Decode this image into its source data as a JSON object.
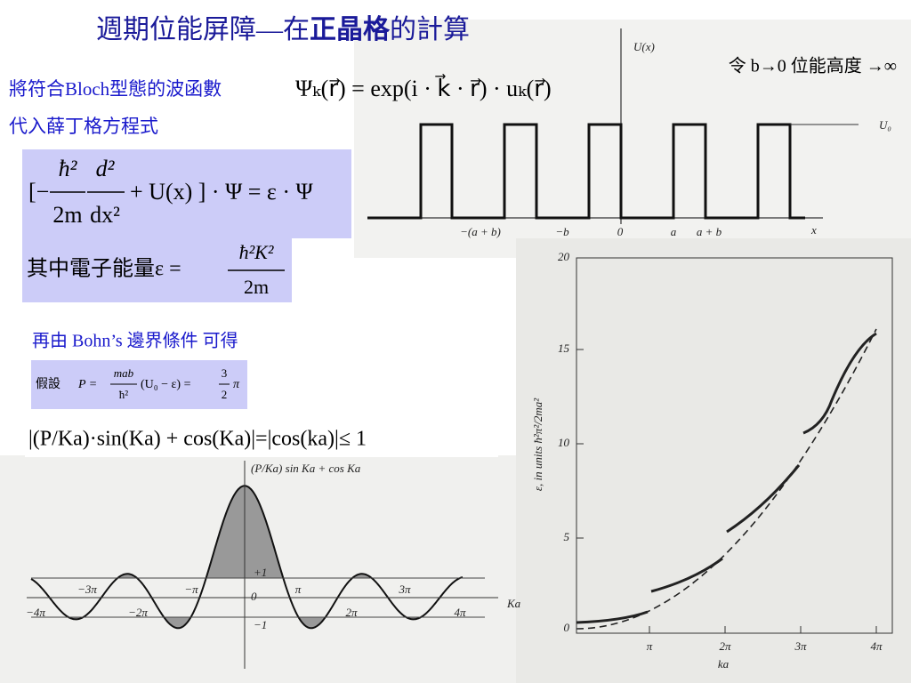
{
  "title": {
    "regular": "週期位能屏障—在",
    "bold": "正晶格",
    "end": "的計算"
  },
  "bloch": {
    "text": "將符合Bloch型態的波函數",
    "equation": "Ψₖ(r⃗) = exp(i · k⃗ · r⃗) · uₖ(r⃗)",
    "next_line": "代入薛丁格方程式"
  },
  "schrodinger": {
    "open": "[−",
    "hbar2": "ħ²",
    "two_m": "2m",
    "d2": "d²",
    "dx2": "dx²",
    "rest": "+ U(x)  ] · Ψ =  ε · Ψ"
  },
  "energy": {
    "label": "其中電子能量ε  =",
    "numerator": "ħ²K²",
    "denominator": "2m"
  },
  "boundary": "再由 Bohn’s 邊界條件   可得",
  "assume": {
    "label": "假設",
    "p": "P =",
    "numerator": "mab",
    "denominator": "ħ²",
    "middle": "(U₀ − ε) =",
    "num2": "3",
    "den2": "2",
    "pi": "π"
  },
  "condition": "|(P/Ka)·sin(Ka) + cos(Ka)|=|cos(ka)|≤ 1",
  "limit_note": "令 b→0  位能高度 →∞",
  "potential_figure": {
    "y_label": "U(x)",
    "level": "U₀",
    "x_label": "x",
    "ticks": [
      "−(a + b)",
      "−b",
      "0",
      "a",
      "a + b"
    ]
  },
  "kp_figure": {
    "curve_label": "(P/Ka) sin Ka + cos Ka",
    "y_ticks": [
      "+1",
      "0",
      "−1"
    ],
    "upper_ticks": [
      "−3π",
      "−π",
      "π",
      "3π"
    ],
    "lower_ticks": [
      "−4π",
      "−2π",
      "2π",
      "4π"
    ],
    "x_label": "Ka"
  },
  "energy_figure": {
    "y_label": "ε, in units ħ²π²/2ma²",
    "y_ticks": [
      20,
      15,
      10,
      5,
      0
    ],
    "x_ticks": [
      "π",
      "2π",
      "3π",
      "4π"
    ],
    "x_label": "ka"
  }
}
